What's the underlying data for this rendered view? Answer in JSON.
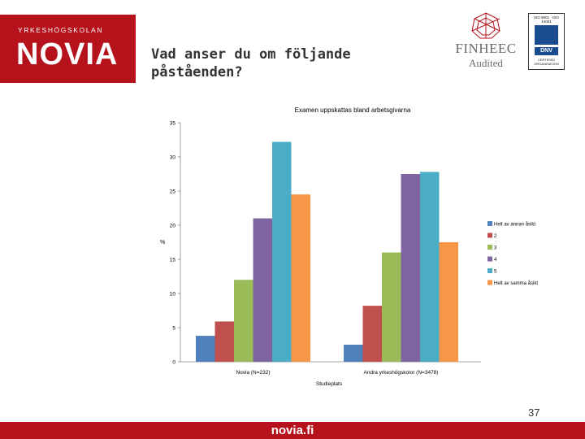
{
  "header": {
    "title": "Vad anser du om följande påståenden?",
    "novia_logo": {
      "subtitle": "YRKESHÖGSKOLAN",
      "name": "NOVIA"
    },
    "finheec_logo": {
      "name": "FINHEEC",
      "tagline": "Audited"
    },
    "dnv_badge": {
      "iso": "ISO 9001 · ISO 14001",
      "brand": "DNV",
      "cert": "CERTIFIED ORGANISATION"
    }
  },
  "chart_data": {
    "type": "bar",
    "title": "Examen uppskattas bland arbetsgivarna",
    "xlabel": "Studieplats",
    "ylabel": "%",
    "ylim": [
      0,
      35
    ],
    "yticks": [
      0,
      5,
      10,
      15,
      20,
      25,
      30,
      35
    ],
    "categories": [
      "Novia (N=232)",
      "Andra yrkeshögskolor (N=3478)"
    ],
    "series": [
      {
        "name": "Helt av annan åsikt",
        "color": "#4f81bd",
        "values": [
          3.8,
          2.5
        ]
      },
      {
        "name": "2",
        "color": "#c0504d",
        "values": [
          5.9,
          8.2
        ]
      },
      {
        "name": "3",
        "color": "#9bbb59",
        "values": [
          12.0,
          16.0
        ]
      },
      {
        "name": "4",
        "color": "#8064a2",
        "values": [
          21.0,
          27.5
        ]
      },
      {
        "name": "5",
        "color": "#4bacc6",
        "values": [
          32.2,
          27.8
        ]
      },
      {
        "name": "Helt av samma åsikt",
        "color": "#f79646",
        "values": [
          24.5,
          17.5
        ]
      }
    ],
    "grid": false,
    "legend": "right"
  },
  "page_number": "37",
  "footer": {
    "url": "novia.fi"
  }
}
